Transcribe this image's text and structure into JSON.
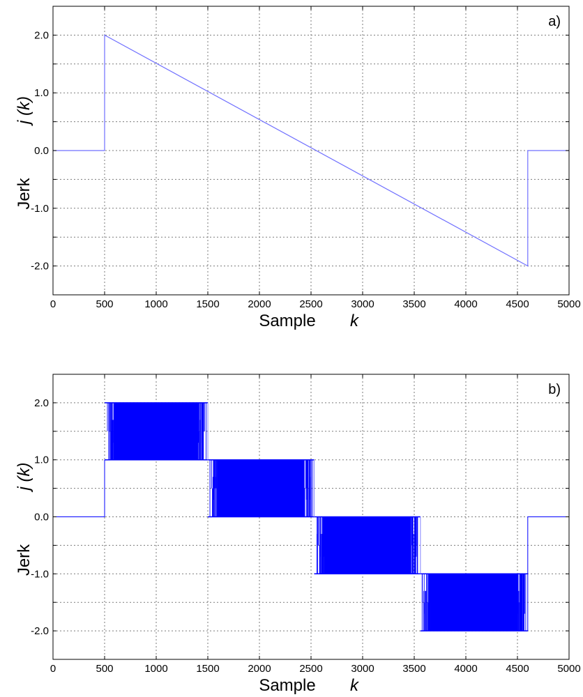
{
  "chart_data": [
    {
      "type": "line",
      "panel_label": "a)",
      "xlabel": "Sample",
      "xlabel_var": "k",
      "ylabel": "Jerk",
      "ylabel_var": "j (k)",
      "xlim": [
        0,
        5000
      ],
      "ylim": [
        -2.5,
        2.5
      ],
      "xticks": [
        0,
        500,
        1000,
        1500,
        2000,
        2500,
        3000,
        3500,
        4000,
        4500,
        5000
      ],
      "xtick_labels": [
        "0",
        "500",
        "1000",
        "1500",
        "2000",
        "2500",
        "3000",
        "3500",
        "4000",
        "4500",
        "5000"
      ],
      "yticks": [
        2.0,
        1.0,
        0.0,
        -1.0,
        -2.0
      ],
      "ytick_labels": [
        "2.0",
        "1.0",
        "0.0",
        "-1.0",
        "-2.0"
      ],
      "grid": true,
      "line_color": "#6f6fff",
      "series": [
        {
          "x": [
            0,
            500,
            500,
            4600,
            4600,
            5000
          ],
          "y": [
            0,
            0,
            2.0,
            -2.0,
            0,
            0
          ]
        }
      ]
    },
    {
      "type": "line",
      "panel_label": "b)",
      "xlabel": "Sample",
      "xlabel_var": "k",
      "ylabel": "Jerk",
      "ylabel_var": "j (k)",
      "xlim": [
        0,
        5000
      ],
      "ylim": [
        -2.5,
        2.5
      ],
      "xticks": [
        0,
        500,
        1000,
        1500,
        2000,
        2500,
        3000,
        3500,
        4000,
        4500,
        5000
      ],
      "xtick_labels": [
        "0",
        "500",
        "1000",
        "1500",
        "2000",
        "2500",
        "3000",
        "3500",
        "4000",
        "4500",
        "5000"
      ],
      "yticks": [
        2.0,
        1.0,
        0.0,
        -1.0,
        -2.0
      ],
      "ytick_labels": [
        "2.0",
        "1.0",
        "0.0",
        "-1.0",
        "-2.0"
      ],
      "grid": true,
      "line_color": "#0000ff",
      "baseline": {
        "x": [
          0,
          500,
          500
        ],
        "y": [
          0,
          0,
          1.0
        ],
        "tail_x": [
          4600,
          4600,
          5000
        ],
        "tail_y": [
          -2.0,
          0,
          0
        ]
      },
      "switching_blocks": [
        {
          "x_start": 500,
          "x_end": 1500,
          "y_low": 1.0,
          "y_high": 2.0
        },
        {
          "x_start": 1500,
          "x_end": 2530,
          "y_low": 0.0,
          "y_high": 1.0
        },
        {
          "x_start": 2530,
          "x_end": 3560,
          "y_low": -1.0,
          "y_high": 0.0
        },
        {
          "x_start": 3560,
          "x_end": 4600,
          "y_low": -2.0,
          "y_high": -1.0
        }
      ]
    }
  ]
}
